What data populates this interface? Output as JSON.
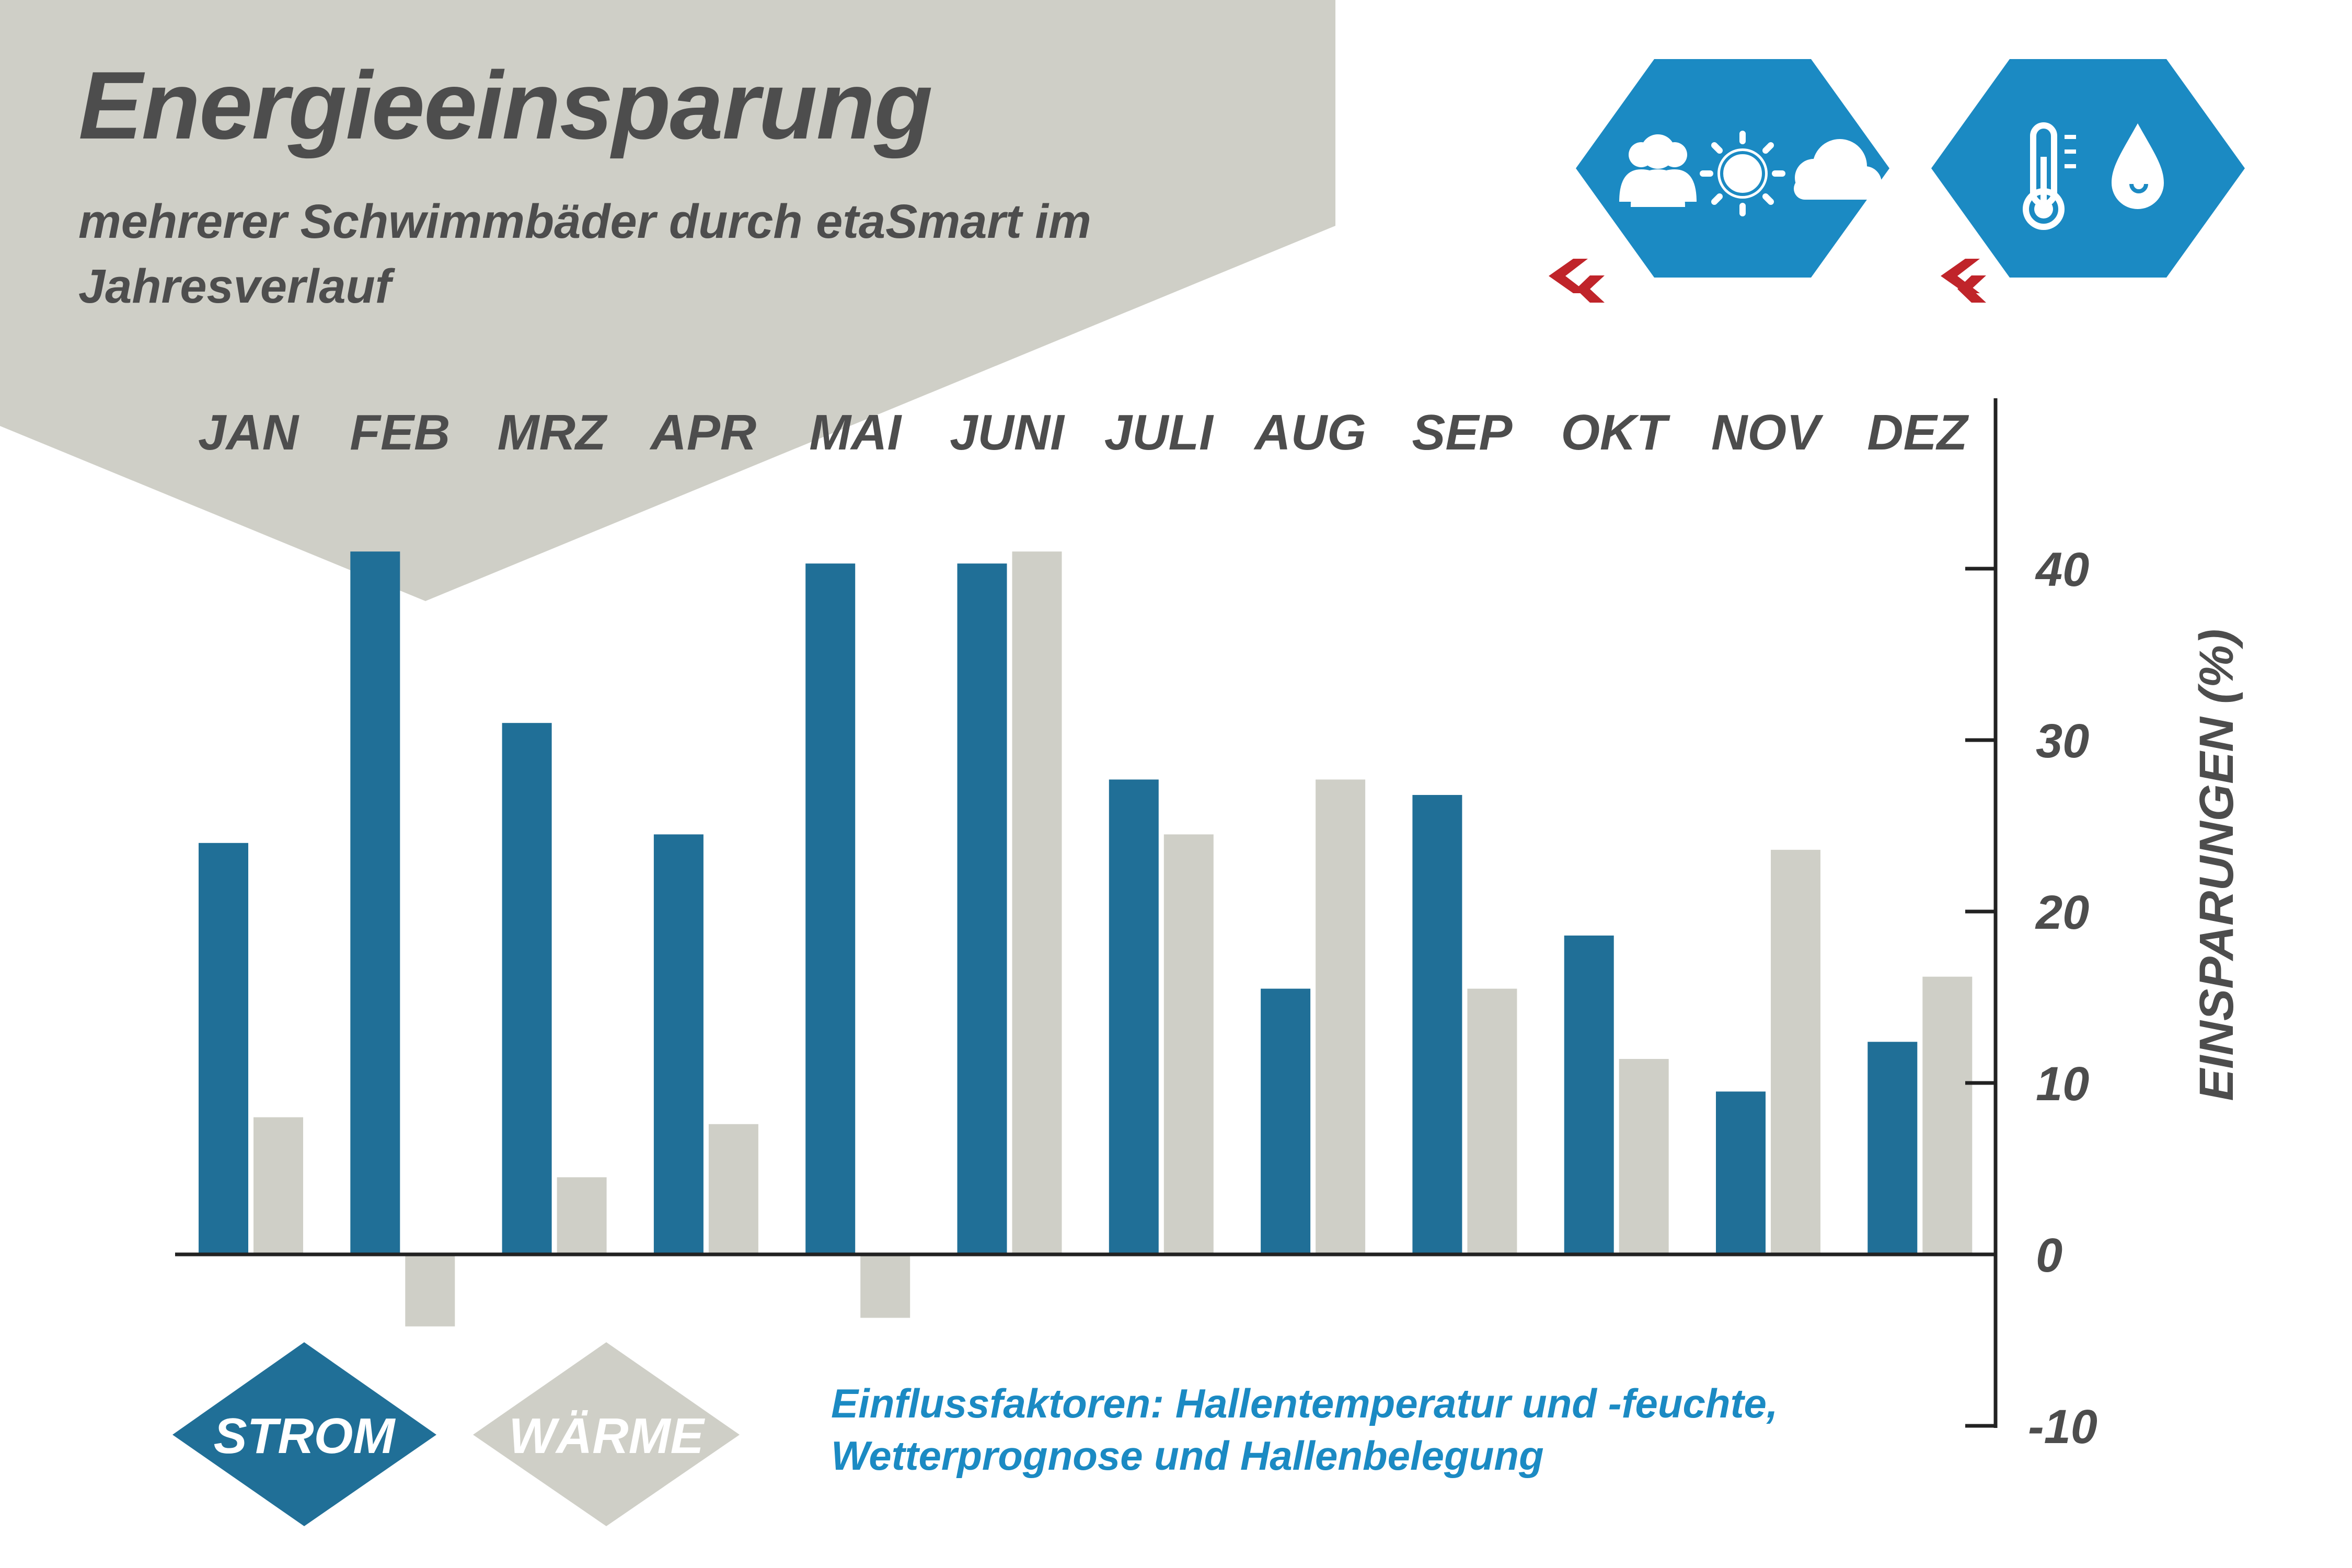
{
  "header": {
    "title": "Energieeinsparung",
    "subtitle": "mehrerer Schwimmbäder durch etaSmart im Jahresverlauf"
  },
  "icons": {
    "group1": [
      "people-icon",
      "sun-icon",
      "cloud-icon",
      "chevron-double-left-icon"
    ],
    "group2": [
      "thermometer-icon",
      "water-drop-icon",
      "chevron-double-left-icon"
    ]
  },
  "colors": {
    "strom": "#206f97",
    "waerme": "#cfcfc7",
    "header_bg": "#cfcfc7",
    "icon_bg": "#1b8ac3",
    "chevron": "#c0242a",
    "text": "#4d4d4d",
    "accent_text": "#1b8ac3"
  },
  "footer": {
    "factors": "Einflussfaktoren: Hallentemperatur und -feuchte, Wetterprognose und Hallenbelegung"
  },
  "chart_data": {
    "type": "bar",
    "categories": [
      "JAN",
      "FEB",
      "MRZ",
      "APR",
      "MAI",
      "JUNI",
      "JULI",
      "AUG",
      "SEP",
      "OKT",
      "NOV",
      "DEZ"
    ],
    "series": [
      {
        "name": "STROM",
        "values": [
          24,
          41,
          31,
          24.5,
          40.3,
          40.3,
          27.7,
          15.5,
          26.8,
          18.6,
          9.5,
          12.4
        ]
      },
      {
        "name": "WÄRME",
        "values": [
          8,
          -4.2,
          4.5,
          7.6,
          -3.7,
          41,
          24.5,
          27.7,
          15.5,
          11.4,
          23.6,
          16.2
        ]
      }
    ],
    "ylabel": "EINSPARUNGEN (%)",
    "ylim": [
      -10,
      50
    ],
    "yticks": [
      40,
      30,
      20,
      10,
      0,
      -10
    ],
    "axis_position": "right",
    "grid": false,
    "legend_position": "bottom-left"
  }
}
